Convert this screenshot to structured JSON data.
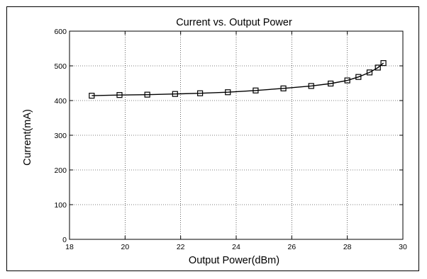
{
  "chart_data": {
    "type": "line",
    "title": "Current vs. Output Power",
    "xlabel": "Output Power(dBm)",
    "ylabel": "Current(mA)",
    "xlim": [
      18,
      30
    ],
    "ylim": [
      0,
      600
    ],
    "xticks": [
      18,
      20,
      22,
      24,
      26,
      28,
      30
    ],
    "yticks": [
      0,
      100,
      200,
      300,
      400,
      500,
      600
    ],
    "grid": true,
    "marker": "square",
    "line_color": "#000000",
    "series": [
      {
        "x": [
          18.8,
          19.8,
          20.8,
          21.8,
          22.7,
          23.7,
          24.7,
          25.7,
          26.7,
          27.4,
          28.0,
          28.4,
          28.8,
          29.1,
          29.3
        ],
        "y": [
          414,
          416,
          417,
          419,
          421,
          424,
          429,
          435,
          442,
          449,
          458,
          468,
          481,
          495,
          508
        ]
      }
    ]
  }
}
